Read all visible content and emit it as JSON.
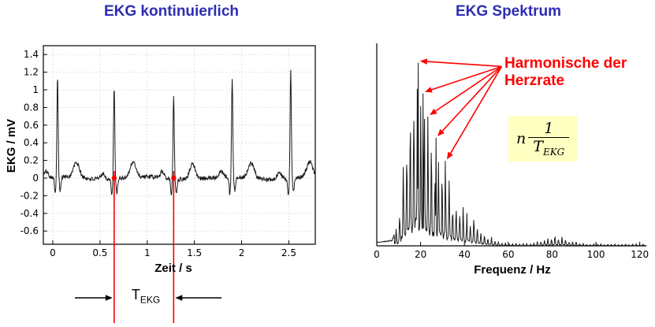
{
  "colors": {
    "title_blue": "#2d2db4",
    "annotation_red": "#ff0000",
    "formula_bg": "#ffffc2",
    "trace_black": "#1a1a1a"
  },
  "chart_data": [
    {
      "type": "line",
      "id": "ekg_time",
      "title": "EKG kontinuierlich",
      "xlabel": "Zeit / s",
      "ylabel": "EKG / mV",
      "xlim": [
        -0.1,
        2.78
      ],
      "ylim": [
        -0.75,
        1.5
      ],
      "xticks": [
        0,
        0.5,
        1,
        1.5,
        2,
        2.5
      ],
      "yticks": [
        -0.6,
        -0.4,
        -0.2,
        0,
        0.2,
        0.4,
        0.6,
        0.8,
        1,
        1.2,
        1.4
      ],
      "grid": true,
      "legend": "none",
      "beat_times": [
        0.05,
        0.65,
        1.28,
        1.9,
        2.52
      ],
      "r_amplitudes": [
        1.15,
        1.03,
        0.95,
        1.12,
        1.25
      ],
      "markers": {
        "t1": 0.65,
        "t2": 1.28,
        "color": "#ff0000",
        "label_main": "T",
        "label_sub": "EKG"
      }
    },
    {
      "type": "line",
      "id": "ekg_spectrum",
      "title": "EKG  Spektrum",
      "xlabel": "Frequenz / Hz",
      "ylabel": "",
      "xlim": [
        0,
        123
      ],
      "ylim": [
        0,
        1.05
      ],
      "xticks": [
        0,
        20,
        40,
        60,
        80,
        100,
        120
      ],
      "yticks": [],
      "grid": false,
      "legend": "none",
      "harmonic_spacing_hz": 1.61,
      "envelope": [
        [
          0,
          0.02
        ],
        [
          7,
          0.03
        ],
        [
          10,
          0.15
        ],
        [
          13,
          0.55
        ],
        [
          16,
          0.8
        ],
        [
          18,
          1.0
        ],
        [
          20,
          0.9
        ],
        [
          23,
          0.75
        ],
        [
          26,
          0.6
        ],
        [
          30,
          0.45
        ],
        [
          34,
          0.33
        ],
        [
          38,
          0.26
        ],
        [
          42,
          0.2
        ],
        [
          46,
          0.12
        ],
        [
          50,
          0.07
        ],
        [
          55,
          0.03
        ],
        [
          60,
          0.015
        ],
        [
          70,
          0.012
        ],
        [
          78,
          0.04
        ],
        [
          83,
          0.06
        ],
        [
          88,
          0.03
        ],
        [
          95,
          0.012
        ],
        [
          110,
          0.01
        ],
        [
          123,
          0.01
        ]
      ],
      "annotation": {
        "lines": [
          "Harmonische der",
          "Herzrate"
        ],
        "color": "#ff0000"
      },
      "arrows": {
        "origin": [
          57,
          0.93
        ],
        "targets": [
          [
            19,
            0.95
          ],
          [
            21.2,
            0.79
          ],
          [
            23.4,
            0.67
          ],
          [
            27,
            0.56
          ],
          [
            31.3,
            0.44
          ]
        ]
      },
      "formula": {
        "n": "n",
        "numerator": "1",
        "den_main": "T",
        "den_sub": "EKG",
        "bg": "#ffffc2"
      }
    }
  ]
}
